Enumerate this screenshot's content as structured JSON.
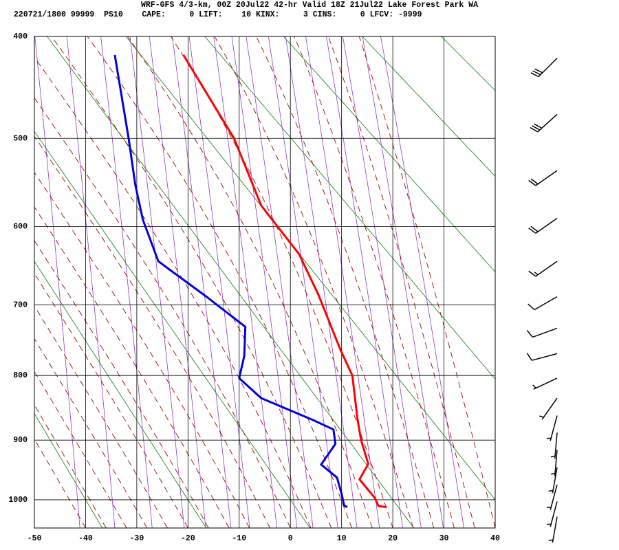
{
  "chart_data": {
    "type": "skew-t",
    "title": "WRF-GFS 4/3-km, 00Z 20Jul22 42-hr Valid 18Z 21Jul22 Lake Forest Park WA",
    "subtitle": "220721/1800 99999  PS10    CAPE:     0 LIFT:    10 KINX:     3 CINS:     0 LFCV: -9999",
    "xlim": [
      -50,
      40
    ],
    "xticks": [
      -50,
      -40,
      -30,
      -20,
      -10,
      0,
      10,
      20,
      30,
      40
    ],
    "ylim": [
      1050,
      400
    ],
    "yticks": [
      400,
      500,
      600,
      700,
      800,
      900,
      1000
    ],
    "y_scale": "exner",
    "grid": true,
    "series": [
      {
        "color": "#ff0000",
        "x": [
          -20.9,
          -11.0,
          -5.7,
          1.7,
          5.5,
          9.8,
          12.1,
          13.1,
          13.8,
          15.2,
          13.5,
          16.5,
          17.2,
          18.8
        ],
        "y": [
          417,
          500,
          575,
          634,
          687,
          763,
          800,
          866,
          900,
          939,
          965,
          997,
          1011,
          1013
        ]
      },
      {
        "color": "#0000dd",
        "x": [
          -34.3,
          -31.6,
          -30.3,
          -28.8,
          -25.8,
          -16.4,
          -8.8,
          -9.0,
          -10.0,
          -5.7,
          4.4,
          8.4,
          8.8,
          7.4,
          6.0,
          9.1,
          10.0,
          10.5,
          11.1
        ],
        "y": [
          417,
          500,
          551,
          592,
          643,
          689,
          730,
          771,
          804,
          834,
          868,
          883,
          906,
          923,
          940,
          962,
          990,
          1010,
          1013
        ]
      }
    ],
    "winds": {
      "pressure": [
        420,
        475,
        535,
        590,
        643,
        689,
        732,
        768,
        804,
        834,
        861,
        888,
        916,
        945,
        974,
        1003,
        1030
      ],
      "direction": [
        225,
        228,
        235,
        235,
        235,
        240,
        250,
        255,
        245,
        215,
        195,
        185,
        185,
        190,
        195,
        195,
        190
      ],
      "speed": [
        30,
        30,
        20,
        20,
        15,
        10,
        10,
        10,
        5,
        5,
        5,
        5,
        5,
        5,
        5,
        5,
        5
      ]
    }
  }
}
